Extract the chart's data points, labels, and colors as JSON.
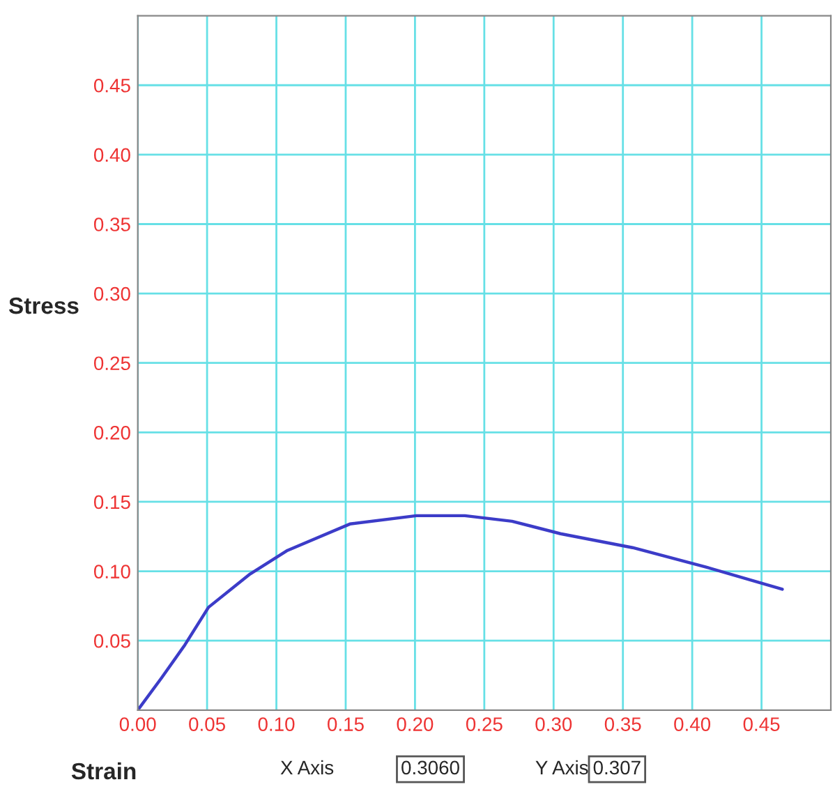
{
  "chart_data": {
    "type": "line",
    "xlabel": "Strain",
    "ylabel": "Stress",
    "x": [
      0,
      0.017,
      0.034,
      0.051,
      0.081,
      0.108,
      0.153,
      0.201,
      0.236,
      0.27,
      0.305,
      0.357,
      0.41,
      0.465
    ],
    "series": [
      {
        "color": "#3c3cc8",
        "values": [
          0,
          0.023,
          0.047,
          0.074,
          0.098,
          0.115,
          0.134,
          0.14,
          0.14,
          0.136,
          0.127,
          0.117,
          0.103,
          0.087
        ]
      }
    ],
    "xlim": [
      0,
      0.5
    ],
    "ylim": [
      0,
      0.5
    ],
    "xticks": [
      {
        "value": 0,
        "label": "0.00"
      },
      {
        "value": 0.05,
        "label": "0.05"
      },
      {
        "value": 0.1,
        "label": "0.10"
      },
      {
        "value": 0.15,
        "label": "0.15"
      },
      {
        "value": 0.2,
        "label": "0.20"
      },
      {
        "value": 0.25,
        "label": "0.25"
      },
      {
        "value": 0.3,
        "label": "0.30"
      },
      {
        "value": 0.35,
        "label": "0.35"
      },
      {
        "value": 0.4,
        "label": "0.40"
      },
      {
        "value": 0.45,
        "label": "0.45"
      }
    ],
    "yticks": [
      {
        "value": 0.05,
        "label": "0.05"
      },
      {
        "value": 0.1,
        "label": "0.10"
      },
      {
        "value": 0.15,
        "label": "0.15"
      },
      {
        "value": 0.2,
        "label": "0.20"
      },
      {
        "value": 0.25,
        "label": "0.25"
      },
      {
        "value": 0.3,
        "label": "0.30"
      },
      {
        "value": 0.35,
        "label": "0.35"
      },
      {
        "value": 0.4,
        "label": "0.40"
      },
      {
        "value": 0.45,
        "label": "0.45"
      }
    ],
    "grid": true,
    "line_style": "solid",
    "marker": "none",
    "annotations": [
      "X Axis",
      "0.3060",
      "Y Axis",
      "0.307"
    ]
  }
}
